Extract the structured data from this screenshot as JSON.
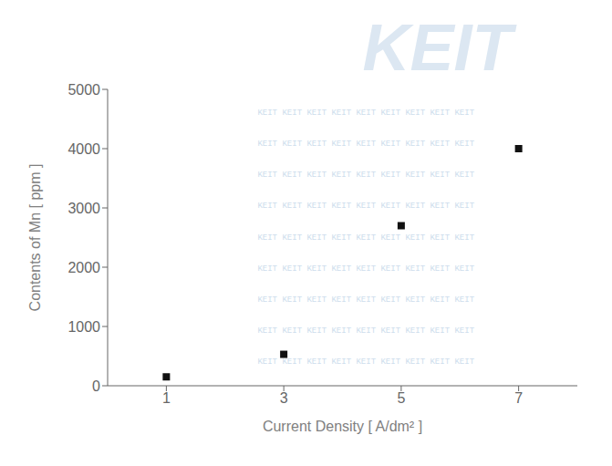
{
  "chart_data": {
    "type": "scatter",
    "x": [
      1,
      3,
      5,
      7
    ],
    "y": [
      150,
      530,
      2700,
      4000
    ],
    "xlabel": "Current Density [ A/dm² ]",
    "ylabel": "Contents of Mn [ ppm ]",
    "xlim": [
      0,
      8
    ],
    "ylim": [
      0,
      5000
    ],
    "xticks": [
      1,
      3,
      5,
      7
    ],
    "yticks": [
      0,
      1000,
      2000,
      3000,
      4000,
      5000
    ],
    "color": "#111111",
    "marker": "square",
    "grid": false,
    "annotations": [
      {
        "text": "KEIT",
        "color": "#c5d8ea"
      },
      {
        "text": "KEIT KEIT KEIT KEIT KEIT KEIT KEIT KEIT KEIT",
        "color": "#c5d8ea"
      }
    ]
  }
}
